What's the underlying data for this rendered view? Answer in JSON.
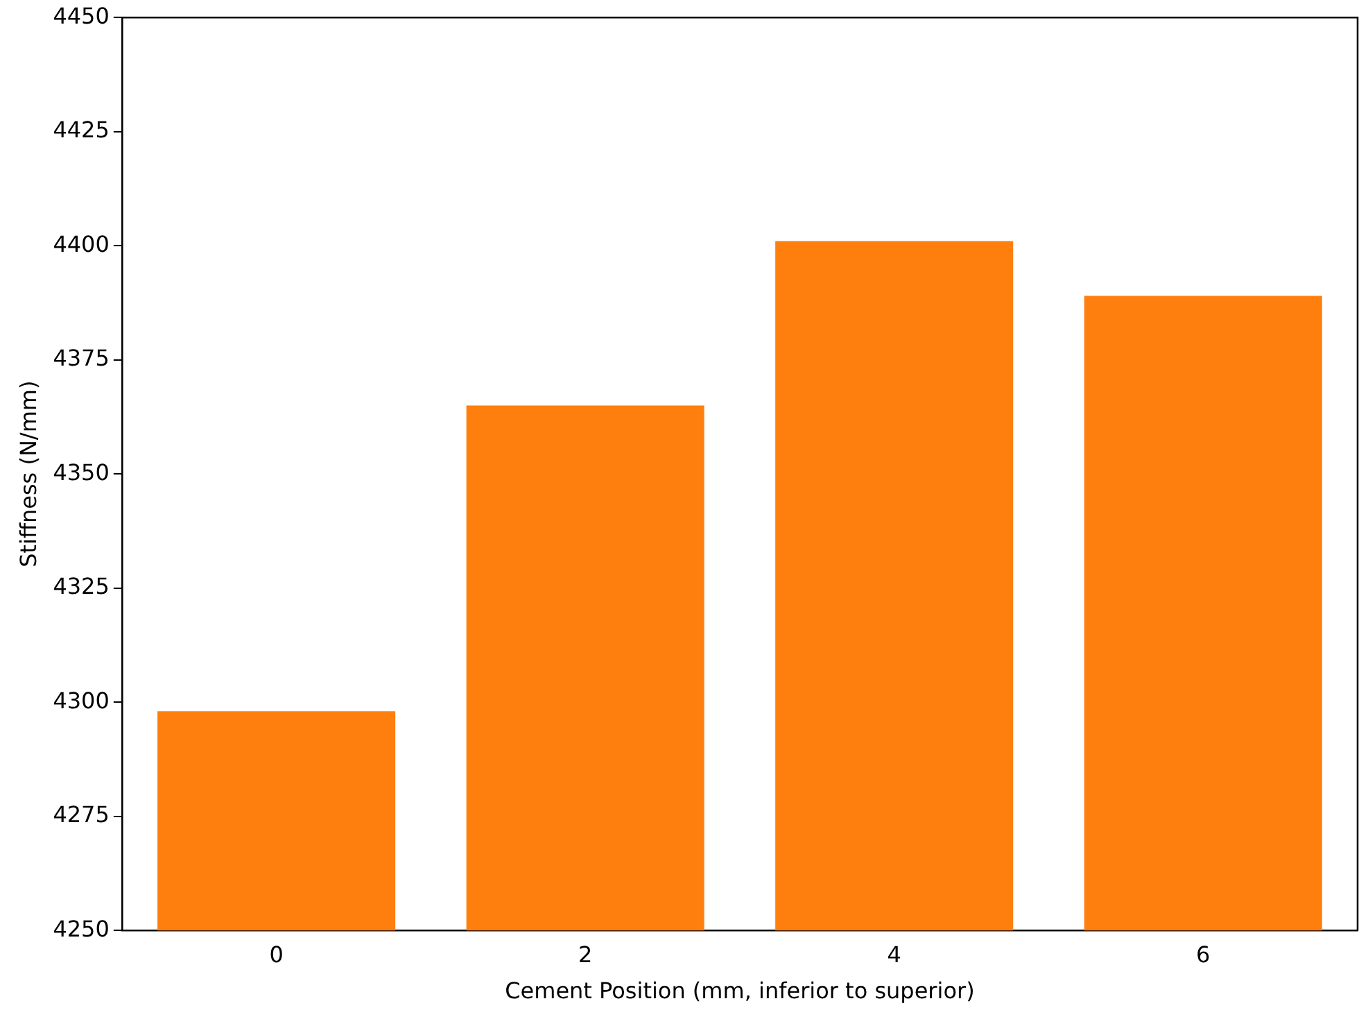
{
  "chart_data": {
    "type": "bar",
    "categories": [
      "0",
      "2",
      "4",
      "6"
    ],
    "values": [
      4298,
      4365,
      4401,
      4389
    ],
    "color": "#ff7f0e",
    "xlabel": "Cement Position (mm, inferior to superior)",
    "ylabel": "Stiffness (N/mm)",
    "ylim": [
      4250,
      4450
    ],
    "yticks": [
      4250,
      4275,
      4300,
      4325,
      4350,
      4375,
      4400,
      4425,
      4450
    ]
  }
}
